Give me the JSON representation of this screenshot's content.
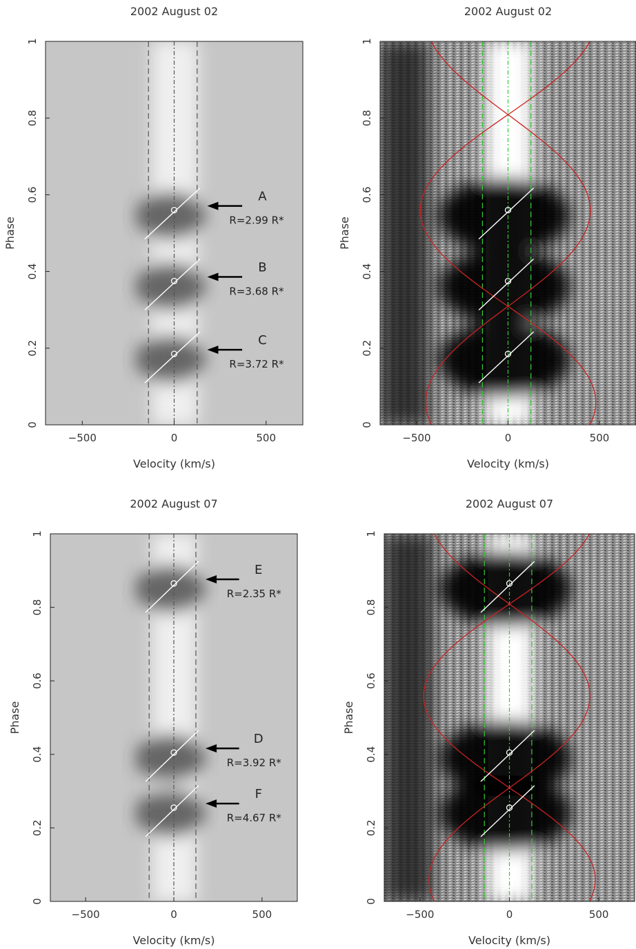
{
  "chart_data": [
    {
      "type": "heatmap",
      "title": "2002 August 02",
      "xlabel": "Velocity (km/s)",
      "ylabel": "Phase",
      "xlim": [
        -700,
        700
      ],
      "ylim": [
        0,
        1
      ],
      "xticks": [
        -500,
        0,
        500
      ],
      "yticks": [
        0,
        0.2,
        0.4,
        0.6,
        0.8,
        1
      ],
      "style": "greyscale",
      "vertical_lines": [
        -140,
        0,
        125
      ],
      "features": [
        {
          "name": "A",
          "label": "R=2.99 R*",
          "phase": 0.56
        },
        {
          "name": "B",
          "label": "R=3.68 R*",
          "phase": 0.375
        },
        {
          "name": "C",
          "label": "R=3.72 R*",
          "phase": 0.185
        }
      ]
    },
    {
      "type": "heatmap",
      "title": "2002 August 02",
      "xlabel": "Velocity (km/s)",
      "ylabel": "Phase",
      "xlim": [
        -700,
        700
      ],
      "ylim": [
        0,
        1
      ],
      "xticks": [
        -500,
        0,
        500
      ],
      "yticks": [
        0,
        0.2,
        0.4,
        0.6,
        0.8,
        1
      ],
      "style": "high-contrast",
      "vertical_lines": [
        -140,
        0,
        125
      ],
      "line_color": "#33cc33",
      "curve_color": "#cc2222",
      "features": [
        {
          "phase": 0.56
        },
        {
          "phase": 0.375
        },
        {
          "phase": 0.185
        }
      ]
    },
    {
      "type": "heatmap",
      "title": "2002 August 07",
      "xlabel": "Velocity (km/s)",
      "ylabel": "Phase",
      "xlim": [
        -700,
        700
      ],
      "ylim": [
        0,
        1
      ],
      "xticks": [
        -500,
        0,
        500
      ],
      "yticks": [
        0,
        0.2,
        0.4,
        0.6,
        0.8,
        1
      ],
      "style": "greyscale",
      "vertical_lines": [
        -140,
        0,
        125
      ],
      "features": [
        {
          "name": "E",
          "label": "R=2.35 R*",
          "phase": 0.865
        },
        {
          "name": "D",
          "label": "R=3.92 R*",
          "phase": 0.405
        },
        {
          "name": "F",
          "label": "R=4.67 R*",
          "phase": 0.255
        }
      ]
    },
    {
      "type": "heatmap",
      "title": "2002 August 07",
      "xlabel": "Velocity (km/s)",
      "ylabel": "Phase",
      "xlim": [
        -700,
        700
      ],
      "ylim": [
        0,
        1
      ],
      "xticks": [
        -500,
        0,
        500
      ],
      "yticks": [
        0,
        0.2,
        0.4,
        0.6,
        0.8,
        1
      ],
      "style": "high-contrast",
      "vertical_lines": [
        -140,
        0,
        125
      ],
      "line_color": "#33cc33",
      "curve_color": "#cc2222",
      "features": [
        {
          "phase": 0.865
        },
        {
          "phase": 0.405
        },
        {
          "phase": 0.255
        }
      ]
    }
  ]
}
